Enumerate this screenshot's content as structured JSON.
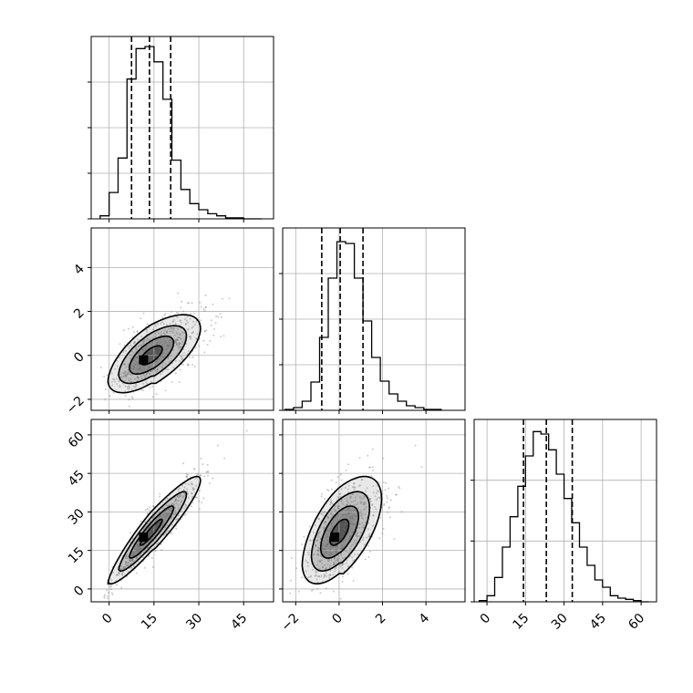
{
  "chart_data": {
    "type": "corner",
    "parameters": [
      "",
      "",
      ""
    ],
    "colors": {
      "line": "#000000",
      "grid": "#b0b0b0",
      "points": "#6e6e6e"
    },
    "panels": {
      "hist_0": {
        "xlim": [
          -6,
          55
        ],
        "bin_edges": [
          -3,
          0,
          3,
          6,
          9,
          12,
          15,
          18,
          21,
          24,
          27,
          30,
          33,
          36,
          39,
          42,
          45,
          48,
          51
        ],
        "counts": [
          3,
          26,
          60,
          138,
          168,
          170,
          155,
          118,
          58,
          29,
          15,
          9,
          5,
          3,
          1,
          1,
          0,
          0
        ],
        "ymax": 180,
        "quantiles": [
          7.5,
          13.5,
          20.6
        ],
        "yticks": [
          0,
          45,
          90,
          135
        ]
      },
      "hist_1": {
        "xlim": [
          -2.6,
          5.8
        ],
        "bin_edges": [
          -2.5,
          -2.1,
          -1.7,
          -1.3,
          -0.9,
          -0.5,
          -0.1,
          0.3,
          0.7,
          1.1,
          1.5,
          1.9,
          2.3,
          2.7,
          3.1,
          3.5,
          3.9,
          4.3,
          4.7
        ],
        "counts": [
          1,
          3,
          10,
          31,
          80,
          145,
          185,
          183,
          145,
          98,
          58,
          32,
          18,
          10,
          5,
          3,
          1,
          1
        ],
        "ymax": 200,
        "quantiles": [
          -0.8,
          0.05,
          1.1
        ],
        "yticks": [
          0,
          50,
          100,
          150
        ]
      },
      "hist_2": {
        "xlim": [
          -5,
          66
        ],
        "bin_edges": [
          -3,
          0,
          3,
          6,
          9,
          12,
          15,
          18,
          21,
          24,
          27,
          30,
          33,
          36,
          39,
          42,
          45,
          48,
          51,
          54,
          57,
          60,
          63
        ],
        "counts": [
          1,
          5,
          20,
          45,
          70,
          95,
          120,
          140,
          138,
          125,
          105,
          85,
          65,
          45,
          30,
          18,
          12,
          5,
          3,
          2,
          1,
          0
        ],
        "ymax": 150,
        "quantiles": [
          14.2,
          23.1,
          33.2
        ],
        "yticks": [
          0,
          50,
          100
        ]
      },
      "scatter_1_0": {
        "xlim": [
          -6,
          55
        ],
        "ylim": [
          -2.5,
          5.8
        ],
        "mean": [
          14,
          0.0
        ],
        "sd": [
          7.2,
          0.85
        ],
        "rho": 0.66,
        "peak": [
          11.5,
          -0.2
        ]
      },
      "scatter_2_0": {
        "xlim": [
          -6,
          55
        ],
        "ylim": [
          -5,
          66
        ],
        "mean": [
          14,
          22
        ],
        "sd": [
          7.2,
          10
        ],
        "rho": 0.93,
        "peak": [
          11.5,
          20.2
        ]
      },
      "scatter_2_1": {
        "xlim": [
          -2.6,
          5.8
        ],
        "ylim": [
          -5,
          66
        ],
        "mean": [
          0.0,
          22
        ],
        "sd": [
          0.85,
          10
        ],
        "rho": 0.6,
        "peak": [
          -0.2,
          20.2
        ]
      }
    },
    "ticks": {
      "param0": [
        0,
        15,
        30,
        45
      ],
      "param1": [
        -2,
        0,
        2,
        4
      ],
      "param2": [
        0,
        15,
        30,
        45,
        60
      ]
    },
    "tick_labels": {
      "param0": [
        "0",
        "15",
        "30",
        "45"
      ],
      "param1": [
        "−2",
        "0",
        "2",
        "4"
      ],
      "param2": [
        "0",
        "15",
        "30",
        "45",
        "60"
      ]
    },
    "grid": true
  }
}
